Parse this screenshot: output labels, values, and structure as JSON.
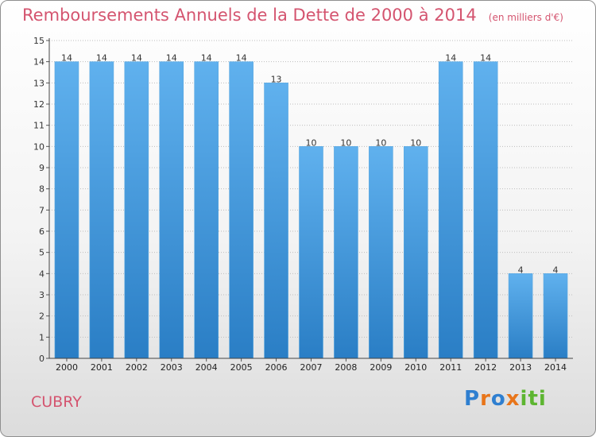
{
  "title": "Remboursements Annuels de la Dette de 2000 à 2014",
  "unit_note": "(en milliers d'€)",
  "commune": "CUBRY",
  "logo": {
    "letters": [
      "P",
      "r",
      "o",
      "x",
      "i",
      "t",
      "i"
    ],
    "colors": [
      "#2f7fd0",
      "#e8751a",
      "#2f7fd0",
      "#e8751a",
      "#5db531",
      "#5db531",
      "#5db531"
    ]
  },
  "colors": {
    "bar_light": "#60b1ee",
    "bar_dark": "#2a7ec5",
    "title": "#d4546f",
    "grid": "#bdbdbd"
  },
  "chart_data": {
    "type": "bar",
    "categories": [
      "2000",
      "2001",
      "2002",
      "2003",
      "2004",
      "2005",
      "2006",
      "2007",
      "2008",
      "2009",
      "2010",
      "2011",
      "2012",
      "2013",
      "2014"
    ],
    "values": [
      14,
      14,
      14,
      14,
      14,
      14,
      13,
      10,
      10,
      10,
      10,
      14,
      14,
      4,
      4
    ],
    "ylim": [
      0,
      15
    ],
    "yticks": [
      "0",
      "1",
      "2",
      "3",
      "4",
      "5",
      "6",
      "7",
      "8",
      "9",
      "10",
      "11",
      "12",
      "13",
      "14",
      "15"
    ],
    "grid": true
  }
}
